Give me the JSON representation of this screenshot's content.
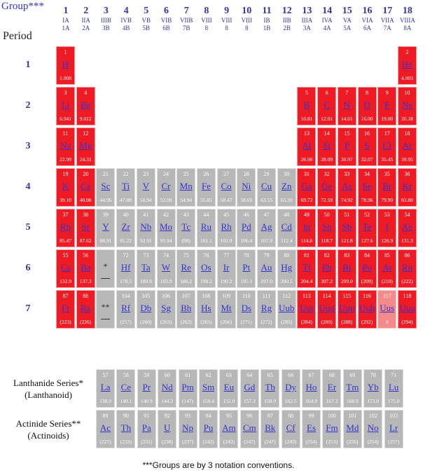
{
  "header": {
    "group_label": "Group***",
    "period_label": "Period"
  },
  "groups": [
    {
      "num": "1",
      "a": "IA",
      "b": "1A"
    },
    {
      "num": "2",
      "a": "IIA",
      "b": "2A"
    },
    {
      "num": "3",
      "a": "IIIB",
      "b": "3B"
    },
    {
      "num": "4",
      "a": "IVB",
      "b": "4B"
    },
    {
      "num": "5",
      "a": "VB",
      "b": "5B"
    },
    {
      "num": "6",
      "a": "VIB",
      "b": "6B"
    },
    {
      "num": "7",
      "a": "VIIB",
      "b": "7B"
    },
    {
      "num": "8",
      "a": "VIII",
      "b": "8"
    },
    {
      "num": "9",
      "a": "VIII",
      "b": "8"
    },
    {
      "num": "10",
      "a": "VIII",
      "b": "8"
    },
    {
      "num": "11",
      "a": "IB",
      "b": "1B"
    },
    {
      "num": "12",
      "a": "IIB",
      "b": "2B"
    },
    {
      "num": "13",
      "a": "IIIA",
      "b": "3A"
    },
    {
      "num": "14",
      "a": "IVA",
      "b": "4A"
    },
    {
      "num": "15",
      "a": "VA",
      "b": "5A"
    },
    {
      "num": "16",
      "a": "VIA",
      "b": "6A"
    },
    {
      "num": "17",
      "a": "VIIA",
      "b": "7A"
    },
    {
      "num": "18",
      "a": "VIIIA",
      "b": "8A"
    }
  ],
  "periods": [
    "1",
    "2",
    "3",
    "4",
    "5",
    "6",
    "7"
  ],
  "elements": [
    {
      "n": "1",
      "s": "H",
      "m": "1.008",
      "p": 1,
      "g": 1,
      "c": "red"
    },
    {
      "n": "2",
      "s": "He",
      "m": "4.003",
      "p": 1,
      "g": 18,
      "c": "red"
    },
    {
      "n": "3",
      "s": "Li",
      "m": "6.941",
      "p": 2,
      "g": 1,
      "c": "red"
    },
    {
      "n": "4",
      "s": "Be",
      "m": "9.012",
      "p": 2,
      "g": 2,
      "c": "red"
    },
    {
      "n": "5",
      "s": "B",
      "m": "10.81",
      "p": 2,
      "g": 13,
      "c": "red"
    },
    {
      "n": "6",
      "s": "C",
      "m": "12.01",
      "p": 2,
      "g": 14,
      "c": "red"
    },
    {
      "n": "7",
      "s": "N",
      "m": "14.01",
      "p": 2,
      "g": 15,
      "c": "red"
    },
    {
      "n": "8",
      "s": "O",
      "m": "16.00",
      "p": 2,
      "g": 16,
      "c": "red"
    },
    {
      "n": "9",
      "s": "F",
      "m": "19.00",
      "p": 2,
      "g": 17,
      "c": "red"
    },
    {
      "n": "10",
      "s": "Ne",
      "m": "20.18",
      "p": 2,
      "g": 18,
      "c": "red"
    },
    {
      "n": "11",
      "s": "Na",
      "m": "22.99",
      "p": 3,
      "g": 1,
      "c": "red"
    },
    {
      "n": "12",
      "s": "Mg",
      "m": "24.31",
      "p": 3,
      "g": 2,
      "c": "red"
    },
    {
      "n": "13",
      "s": "Al",
      "m": "26.98",
      "p": 3,
      "g": 13,
      "c": "red"
    },
    {
      "n": "14",
      "s": "Si",
      "m": "28.09",
      "p": 3,
      "g": 14,
      "c": "red"
    },
    {
      "n": "15",
      "s": "P",
      "m": "30.97",
      "p": 3,
      "g": 15,
      "c": "red"
    },
    {
      "n": "16",
      "s": "S",
      "m": "32.07",
      "p": 3,
      "g": 16,
      "c": "red"
    },
    {
      "n": "17",
      "s": "Cl",
      "m": "35.45",
      "p": 3,
      "g": 17,
      "c": "red"
    },
    {
      "n": "18",
      "s": "Ar",
      "m": "39.95",
      "p": 3,
      "g": 18,
      "c": "red"
    },
    {
      "n": "19",
      "s": "K",
      "m": "39.10",
      "p": 4,
      "g": 1,
      "c": "red"
    },
    {
      "n": "20",
      "s": "Ca",
      "m": "40.08",
      "p": 4,
      "g": 2,
      "c": "red"
    },
    {
      "n": "21",
      "s": "Sc",
      "m": "44.96",
      "p": 4,
      "g": 3,
      "c": "gray"
    },
    {
      "n": "22",
      "s": "Ti",
      "m": "47.88",
      "p": 4,
      "g": 4,
      "c": "gray"
    },
    {
      "n": "23",
      "s": "V",
      "m": "50.94",
      "p": 4,
      "g": 5,
      "c": "gray"
    },
    {
      "n": "24",
      "s": "Cr",
      "m": "52.00",
      "p": 4,
      "g": 6,
      "c": "gray"
    },
    {
      "n": "25",
      "s": "Mn",
      "m": "54.94",
      "p": 4,
      "g": 7,
      "c": "gray"
    },
    {
      "n": "26",
      "s": "Fe",
      "m": "55.85",
      "p": 4,
      "g": 8,
      "c": "gray"
    },
    {
      "n": "27",
      "s": "Co",
      "m": "58.47",
      "p": 4,
      "g": 9,
      "c": "gray"
    },
    {
      "n": "28",
      "s": "Ni",
      "m": "58.69",
      "p": 4,
      "g": 10,
      "c": "gray"
    },
    {
      "n": "29",
      "s": "Cu",
      "m": "63.55",
      "p": 4,
      "g": 11,
      "c": "gray"
    },
    {
      "n": "30",
      "s": "Zn",
      "m": "65.39",
      "p": 4,
      "g": 12,
      "c": "gray"
    },
    {
      "n": "31",
      "s": "Ga",
      "m": "69.72",
      "p": 4,
      "g": 13,
      "c": "red"
    },
    {
      "n": "32",
      "s": "Ge",
      "m": "72.59",
      "p": 4,
      "g": 14,
      "c": "red"
    },
    {
      "n": "33",
      "s": "As",
      "m": "74.92",
      "p": 4,
      "g": 15,
      "c": "red"
    },
    {
      "n": "34",
      "s": "Se",
      "m": "78.96",
      "p": 4,
      "g": 16,
      "c": "red"
    },
    {
      "n": "35",
      "s": "Br",
      "m": "79.90",
      "p": 4,
      "g": 17,
      "c": "red"
    },
    {
      "n": "36",
      "s": "Kr",
      "m": "83.80",
      "p": 4,
      "g": 18,
      "c": "red"
    },
    {
      "n": "37",
      "s": "Rb",
      "m": "85.47",
      "p": 5,
      "g": 1,
      "c": "red"
    },
    {
      "n": "38",
      "s": "Sr",
      "m": "87.62",
      "p": 5,
      "g": 2,
      "c": "red"
    },
    {
      "n": "39",
      "s": "Y",
      "m": "88.91",
      "p": 5,
      "g": 3,
      "c": "gray"
    },
    {
      "n": "40",
      "s": "Zr",
      "m": "91.22",
      "p": 5,
      "g": 4,
      "c": "gray"
    },
    {
      "n": "41",
      "s": "Nb",
      "m": "92.91",
      "p": 5,
      "g": 5,
      "c": "gray"
    },
    {
      "n": "42",
      "s": "Mo",
      "m": "95.94",
      "p": 5,
      "g": 6,
      "c": "gray"
    },
    {
      "n": "43",
      "s": "Tc",
      "m": "(98)",
      "p": 5,
      "g": 7,
      "c": "gray"
    },
    {
      "n": "44",
      "s": "Ru",
      "m": "101.1",
      "p": 5,
      "g": 8,
      "c": "gray"
    },
    {
      "n": "45",
      "s": "Rh",
      "m": "102.9",
      "p": 5,
      "g": 9,
      "c": "gray"
    },
    {
      "n": "46",
      "s": "Pd",
      "m": "106.4",
      "p": 5,
      "g": 10,
      "c": "gray"
    },
    {
      "n": "47",
      "s": "Ag",
      "m": "107.9",
      "p": 5,
      "g": 11,
      "c": "gray"
    },
    {
      "n": "48",
      "s": "Cd",
      "m": "112.4",
      "p": 5,
      "g": 12,
      "c": "gray"
    },
    {
      "n": "49",
      "s": "In",
      "m": "114.8",
      "p": 5,
      "g": 13,
      "c": "red"
    },
    {
      "n": "50",
      "s": "Sn",
      "m": "118.7",
      "p": 5,
      "g": 14,
      "c": "red"
    },
    {
      "n": "51",
      "s": "Sb",
      "m": "121.8",
      "p": 5,
      "g": 15,
      "c": "red"
    },
    {
      "n": "52",
      "s": "Te",
      "m": "127.6",
      "p": 5,
      "g": 16,
      "c": "red"
    },
    {
      "n": "53",
      "s": "I",
      "m": "126.9",
      "p": 5,
      "g": 17,
      "c": "red"
    },
    {
      "n": "54",
      "s": "Xe",
      "m": "131.3",
      "p": 5,
      "g": 18,
      "c": "red"
    },
    {
      "n": "55",
      "s": "Cs",
      "m": "132.9",
      "p": 6,
      "g": 1,
      "c": "red"
    },
    {
      "n": "56",
      "s": "Ba",
      "m": "137.3",
      "p": 6,
      "g": 2,
      "c": "red"
    },
    {
      "n": "72",
      "s": "Hf",
      "m": "178.5",
      "p": 6,
      "g": 4,
      "c": "gray"
    },
    {
      "n": "73",
      "s": "Ta",
      "m": "180.9",
      "p": 6,
      "g": 5,
      "c": "gray"
    },
    {
      "n": "74",
      "s": "W",
      "m": "183.9",
      "p": 6,
      "g": 6,
      "c": "gray"
    },
    {
      "n": "75",
      "s": "Re",
      "m": "186.2",
      "p": 6,
      "g": 7,
      "c": "gray"
    },
    {
      "n": "76",
      "s": "Os",
      "m": "190.2",
      "p": 6,
      "g": 8,
      "c": "gray"
    },
    {
      "n": "77",
      "s": "Ir",
      "m": "190.2",
      "p": 6,
      "g": 9,
      "c": "gray"
    },
    {
      "n": "78",
      "s": "Pt",
      "m": "195.1",
      "p": 6,
      "g": 10,
      "c": "gray"
    },
    {
      "n": "79",
      "s": "Au",
      "m": "197.0",
      "p": 6,
      "g": 11,
      "c": "gray"
    },
    {
      "n": "80",
      "s": "Hg",
      "m": "200.5",
      "p": 6,
      "g": 12,
      "c": "gray"
    },
    {
      "n": "81",
      "s": "Tl",
      "m": "204.4",
      "p": 6,
      "g": 13,
      "c": "red"
    },
    {
      "n": "82",
      "s": "Pb",
      "m": "207.2",
      "p": 6,
      "g": 14,
      "c": "red"
    },
    {
      "n": "83",
      "s": "Bi",
      "m": "209.0",
      "p": 6,
      "g": 15,
      "c": "red"
    },
    {
      "n": "84",
      "s": "Po",
      "m": "(209)",
      "p": 6,
      "g": 16,
      "c": "red"
    },
    {
      "n": "85",
      "s": "At",
      "m": "(210)",
      "p": 6,
      "g": 17,
      "c": "red"
    },
    {
      "n": "86",
      "s": "Rn",
      "m": "(222)",
      "p": 6,
      "g": 18,
      "c": "red"
    },
    {
      "n": "87",
      "s": "Fr",
      "m": "(223)",
      "p": 7,
      "g": 1,
      "c": "red"
    },
    {
      "n": "88",
      "s": "Ra",
      "m": "(226)",
      "p": 7,
      "g": 2,
      "c": "red"
    },
    {
      "n": "104",
      "s": "Rf",
      "m": "(257)",
      "p": 7,
      "g": 4,
      "c": "gray"
    },
    {
      "n": "105",
      "s": "Db",
      "m": "(260)",
      "p": 7,
      "g": 5,
      "c": "gray"
    },
    {
      "n": "106",
      "s": "Sg",
      "m": "(263)",
      "p": 7,
      "g": 6,
      "c": "gray"
    },
    {
      "n": "107",
      "s": "Bh",
      "m": "(262)",
      "p": 7,
      "g": 7,
      "c": "gray"
    },
    {
      "n": "108",
      "s": "Hs",
      "m": "(265)",
      "p": 7,
      "g": 8,
      "c": "gray"
    },
    {
      "n": "109",
      "s": "Mt",
      "m": "(266)",
      "p": 7,
      "g": 9,
      "c": "gray"
    },
    {
      "n": "110",
      "s": "Ds",
      "m": "(271)",
      "p": 7,
      "g": 10,
      "c": "gray"
    },
    {
      "n": "111",
      "s": "Rg",
      "m": "(272)",
      "p": 7,
      "g": 11,
      "c": "gray"
    },
    {
      "n": "112",
      "s": "Uub",
      "m": "(285)",
      "p": 7,
      "g": 12,
      "c": "gray"
    },
    {
      "n": "113",
      "s": "Uut",
      "m": "(284)",
      "p": 7,
      "g": 13,
      "c": "red"
    },
    {
      "n": "114",
      "s": "Uuq",
      "m": "(289)",
      "p": 7,
      "g": 14,
      "c": "red"
    },
    {
      "n": "115",
      "s": "Uup",
      "m": "(288)",
      "p": 7,
      "g": 15,
      "c": "red"
    },
    {
      "n": "116",
      "s": "Uuh",
      "m": "(292)",
      "p": 7,
      "g": 16,
      "c": "red"
    },
    {
      "n": "117",
      "s": "Uus",
      "m": "0",
      "p": 7,
      "g": 17,
      "c": "pale"
    },
    {
      "n": "118",
      "s": "Uuo",
      "m": "(294)",
      "p": 7,
      "g": 18,
      "c": "red"
    }
  ],
  "placeholders": {
    "lanthanide_mark": "*",
    "actinide_mark": "**"
  },
  "lanthanides": {
    "label_line1": "Lanthanide Series*",
    "label_line2": "(Lanthanoid)",
    "items": [
      {
        "n": "57",
        "s": "La",
        "m": "138.9"
      },
      {
        "n": "58",
        "s": "Ce",
        "m": "140.1"
      },
      {
        "n": "59",
        "s": "Pr",
        "m": "140.9"
      },
      {
        "n": "60",
        "s": "Nd",
        "m": "144.2"
      },
      {
        "n": "61",
        "s": "Pm",
        "m": "(147)"
      },
      {
        "n": "62",
        "s": "Sm",
        "m": "150.4"
      },
      {
        "n": "63",
        "s": "Eu",
        "m": "152.0"
      },
      {
        "n": "64",
        "s": "Gd",
        "m": "157.3"
      },
      {
        "n": "65",
        "s": "Tb",
        "m": "158.9"
      },
      {
        "n": "66",
        "s": "Dy",
        "m": "162.5"
      },
      {
        "n": "67",
        "s": "Ho",
        "m": "164.9"
      },
      {
        "n": "68",
        "s": "Er",
        "m": "167.3"
      },
      {
        "n": "69",
        "s": "Tm",
        "m": "168.9"
      },
      {
        "n": "70",
        "s": "Yb",
        "m": "173.0"
      },
      {
        "n": "71",
        "s": "Lu",
        "m": "175.0"
      }
    ]
  },
  "actinides": {
    "label_line1": "Actinide Series**",
    "label_line2": "(Actinoids)",
    "items": [
      {
        "n": "89",
        "s": "Ac",
        "m": "(227)"
      },
      {
        "n": "90",
        "s": "Th",
        "m": "(232)"
      },
      {
        "n": "91",
        "s": "Pa",
        "m": "(231)"
      },
      {
        "n": "92",
        "s": "U",
        "m": "(238)"
      },
      {
        "n": "93",
        "s": "Np",
        "m": "(237)"
      },
      {
        "n": "94",
        "s": "Pu",
        "m": "(242)"
      },
      {
        "n": "95",
        "s": "Am",
        "m": "(243)"
      },
      {
        "n": "96",
        "s": "Cm",
        "m": "(247)"
      },
      {
        "n": "97",
        "s": "Bk",
        "m": "(247)"
      },
      {
        "n": "98",
        "s": "Cf",
        "m": "(249)"
      },
      {
        "n": "99",
        "s": "Es",
        "m": "(254)"
      },
      {
        "n": "100",
        "s": "Fm",
        "m": "(253)"
      },
      {
        "n": "101",
        "s": "Md",
        "m": "(256)"
      },
      {
        "n": "102",
        "s": "No",
        "m": "(254)"
      },
      {
        "n": "103",
        "s": "Lr",
        "m": "(257)"
      }
    ]
  },
  "footnote": "***Groups are by 3 notation conventions.",
  "colors": {
    "metal_red": "#ee1b24",
    "transition_gray": "#b7b7b7",
    "link_blue": "#3333cc"
  }
}
